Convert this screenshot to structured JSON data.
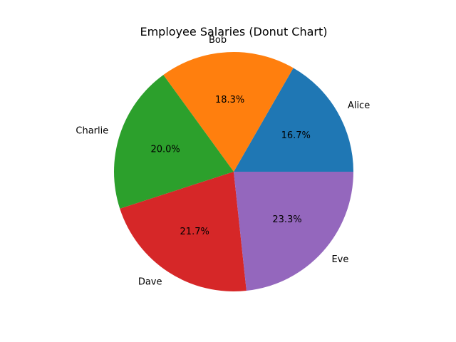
{
  "chart_data": {
    "type": "pie",
    "title": "Employee Salaries (Donut Chart)",
    "categories": [
      "Alice",
      "Bob",
      "Charlie",
      "Dave",
      "Eve"
    ],
    "values": [
      16.7,
      18.3,
      20.0,
      21.7,
      23.3
    ],
    "value_labels": [
      "16.7%",
      "18.3%",
      "20.0%",
      "21.7%",
      "23.3%"
    ],
    "colors": [
      "#1f77b4",
      "#ff7f0e",
      "#2ca02c",
      "#d62728",
      "#9467bd"
    ],
    "start_angle_deg": 0,
    "direction": "counterclockwise",
    "legend": "none"
  }
}
